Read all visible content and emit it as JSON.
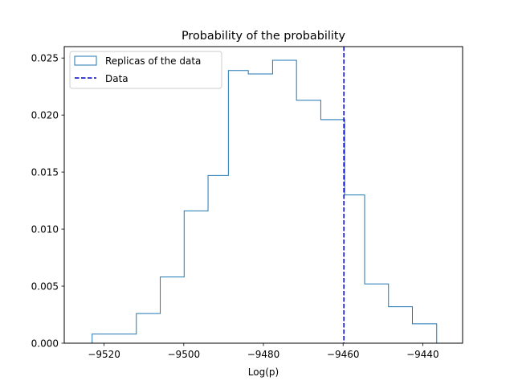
{
  "chart_data": {
    "type": "histogram",
    "title": "Probability of the probability",
    "xlabel": "Log(p)",
    "ylabel": "",
    "xlim": [
      -9530,
      -9430
    ],
    "ylim": [
      0,
      0.026
    ],
    "xticks": [
      -9520,
      -9500,
      -9480,
      -9460,
      -9440
    ],
    "xtick_labels": [
      "−9520",
      "−9500",
      "−9480",
      "−9460",
      "−9440"
    ],
    "yticks": [
      0.0,
      0.005,
      0.01,
      0.015,
      0.02,
      0.025
    ],
    "ytick_labels": [
      "0.000",
      "0.005",
      "0.010",
      "0.015",
      "0.020",
      "0.025"
    ],
    "grid": false,
    "legend_position": "top-left",
    "series": [
      {
        "name": "Replicas of the data",
        "kind": "step-histogram",
        "color": "#1f77b4",
        "bin_edges": [
          -9523.0,
          -9511.9,
          -9505.9,
          -9499.9,
          -9493.9,
          -9488.8,
          -9483.8,
          -9477.7,
          -9471.7,
          -9465.6,
          -9459.6,
          -9454.6,
          -9448.6,
          -9442.6,
          -9436.5
        ],
        "values": [
          0.0008,
          0.0026,
          0.0058,
          0.0116,
          0.0147,
          0.0239,
          0.0236,
          0.0248,
          0.0213,
          0.0196,
          0.013,
          0.0052,
          0.0032,
          0.0017
        ]
      },
      {
        "name": "Data",
        "kind": "vertical-line",
        "color": "#0000cc",
        "linestyle": "dashed",
        "x": -9459.8
      }
    ]
  }
}
